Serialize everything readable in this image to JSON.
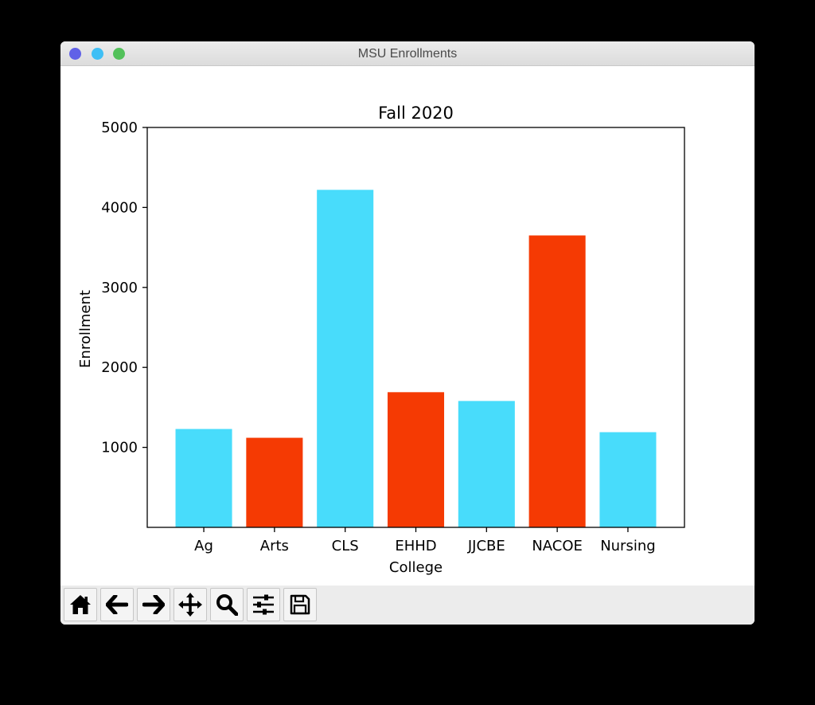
{
  "window": {
    "title": "MSU Enrollments",
    "buttons": {
      "close_color": "#6061e7",
      "minimize_color": "#3fbff5",
      "maximize_color": "#52c15a"
    }
  },
  "toolbar": {
    "tools": [
      "home-icon",
      "back-arrow-icon",
      "forward-arrow-icon",
      "pan-icon",
      "zoom-icon",
      "configure-subplots-icon",
      "save-icon"
    ]
  },
  "chart_data": {
    "type": "bar",
    "title": "Fall 2020",
    "xlabel": "College",
    "ylabel": "Enrollment",
    "categories": [
      "Ag",
      "Arts",
      "CLS",
      "EHHD",
      "JJCBE",
      "NACOE",
      "Nursing"
    ],
    "values": [
      1230,
      1120,
      4220,
      1690,
      1580,
      3650,
      1190
    ],
    "colors": [
      "#48dcfb",
      "#f53a03",
      "#48dcfb",
      "#f53a03",
      "#48dcfb",
      "#f53a03",
      "#48dcfb"
    ],
    "ylim": [
      0,
      5000
    ],
    "yticks": [
      1000,
      2000,
      3000,
      4000,
      5000
    ],
    "ytick_labels": [
      "1000",
      "2000",
      "3000",
      "4000",
      "5000"
    ],
    "grid": false,
    "legend": false
  }
}
